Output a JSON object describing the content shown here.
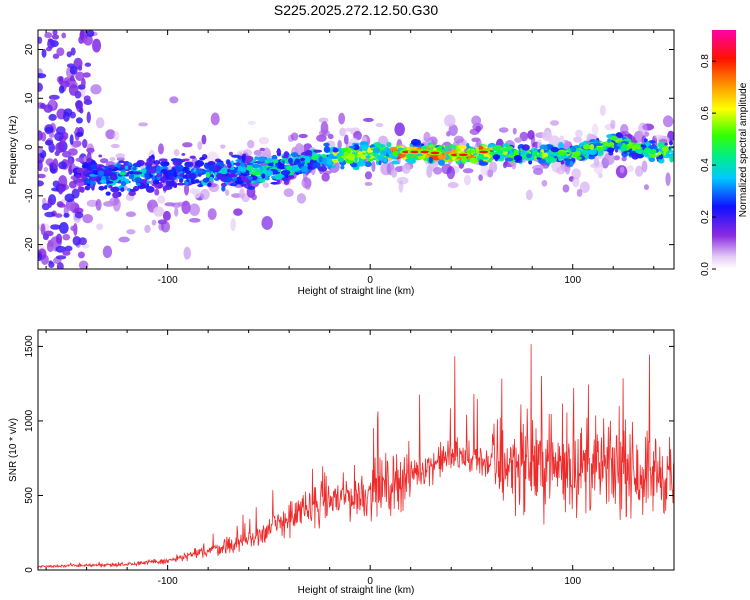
{
  "title": "S225.2025.272.12.50.G30",
  "colors": {
    "snr_line": "#ee2b2b"
  },
  "chart_data": [
    {
      "type": "heatmap",
      "title": "S225.2025.272.12.50.G30",
      "xlabel": "Height of straight line (km)",
      "ylabel": "Frequency (Hz)",
      "xlim": [
        -164,
        150
      ],
      "ylim": [
        -25,
        24
      ],
      "xticks": [
        -100,
        0,
        100
      ],
      "yticks": [
        -20,
        -10,
        0,
        10,
        20
      ],
      "colorbar": {
        "label": "Normalized spectral amplitude",
        "range": [
          0.0,
          0.92
        ],
        "ticks": [
          0.0,
          0.2,
          0.4,
          0.6,
          0.8
        ],
        "colormap": "rainbow (white/violet low to magenta high)"
      },
      "ridge_center_hz": [
        [
          -140,
          -6
        ],
        [
          -120,
          -6
        ],
        [
          -100,
          -5.5
        ],
        [
          -80,
          -5
        ],
        [
          -60,
          -5
        ],
        [
          -40,
          -4
        ],
        [
          -20,
          -2
        ],
        [
          0,
          -1.5
        ],
        [
          20,
          -1
        ],
        [
          40,
          -1.5
        ],
        [
          60,
          -1
        ],
        [
          80,
          -1.5
        ],
        [
          100,
          -1.5
        ],
        [
          120,
          1
        ],
        [
          140,
          -1
        ]
      ]
    },
    {
      "type": "line",
      "xlabel": "Height of straight line (km)",
      "ylabel": "SNR (10 * v/v)",
      "xlim": [
        -164,
        150
      ],
      "ylim": [
        0,
        1610
      ],
      "xticks": [
        -100,
        0,
        100
      ],
      "yticks": [
        0,
        500,
        1000,
        1500
      ],
      "series": [
        {
          "name": "SNR",
          "x": [
            -160,
            -140,
            -120,
            -100,
            -80,
            -60,
            -40,
            -20,
            0,
            20,
            40,
            60,
            80,
            100,
            120,
            140,
            150
          ],
          "y": [
            25,
            30,
            40,
            60,
            130,
            200,
            350,
            470,
            520,
            640,
            770,
            720,
            720,
            690,
            680,
            650,
            640
          ]
        }
      ]
    }
  ]
}
